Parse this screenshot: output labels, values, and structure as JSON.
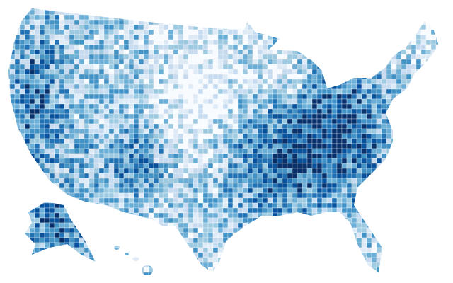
{
  "map": {
    "palette": [
      "#f7fbff",
      "#deebf7",
      "#c6dbef",
      "#9ecae1",
      "#6baed6",
      "#4292c6",
      "#2171b5",
      "#08519c",
      "#08306b"
    ]
  }
}
